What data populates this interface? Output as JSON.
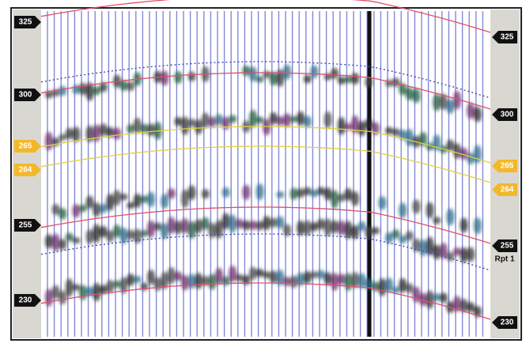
{
  "left_markers": [
    "325",
    "300",
    "265",
    "264",
    "255",
    "230"
  ],
  "right_markers": [
    "325",
    "300",
    "265",
    "264",
    "255",
    "230"
  ],
  "right_note": "Rpt 1"
}
